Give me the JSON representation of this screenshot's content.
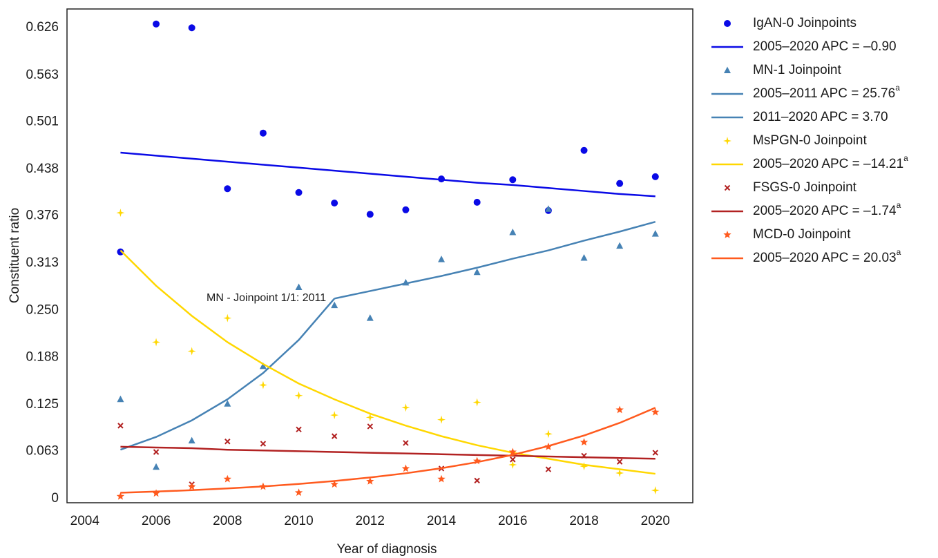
{
  "chart_data": {
    "type": "line",
    "x_label": "Year of diagnosis",
    "y_label": "Constituent ratio",
    "annotation": "MN - Joinpoint 1/1:  2011",
    "annotation_x": 2011,
    "x": [
      2005,
      2006,
      2007,
      2008,
      2009,
      2010,
      2011,
      2012,
      2013,
      2014,
      2015,
      2016,
      2017,
      2018,
      2019,
      2020
    ],
    "xlim": [
      2003.5,
      2021.05
    ],
    "xticks": [
      2004,
      2006,
      2008,
      2010,
      2012,
      2014,
      2016,
      2018,
      2020
    ],
    "ylim": [
      -0.0055,
      0.651
    ],
    "yticks": [
      0,
      0.063,
      0.125,
      0.188,
      {
        "value": 0.25,
        "label": "0.250"
      },
      0.313,
      0.376,
      0.438,
      0.501,
      0.563,
      0.626
    ],
    "grid": false,
    "legend": "outside-right",
    "series": [
      {
        "name": "IgAN-0 Joinpoints",
        "kind": "scatter",
        "marker": "circle",
        "color": "#0a0ae6",
        "values": [
          0.328,
          0.631,
          0.626,
          0.412,
          0.486,
          0.407,
          0.393,
          0.378,
          0.384,
          0.425,
          0.394,
          0.424,
          0.383,
          0.463,
          0.419,
          0.428
        ]
      },
      {
        "name": "2005–2020 APC = –0.90",
        "kind": "line",
        "color": "#0a0ae6",
        "values": [
          0.46,
          0.456,
          0.452,
          0.448,
          0.444,
          0.44,
          0.436,
          0.432,
          0.428,
          0.424,
          0.42,
          0.417,
          0.413,
          0.409,
          0.405,
          0.402
        ]
      },
      {
        "name": "MN-1 Joinpoint",
        "kind": "scatter",
        "marker": "triangle",
        "color": "#4682b4",
        "values": [
          0.132,
          0.042,
          0.077,
          0.126,
          0.176,
          0.281,
          0.257,
          0.24,
          0.287,
          0.318,
          0.301,
          0.354,
          0.385,
          0.32,
          0.336,
          0.352
        ]
      },
      {
        "name": "2005–2011 APC = 25.76",
        "name_sup": "a",
        "kind": "line",
        "color": "#4682b4",
        "values": [
          0.065,
          0.082,
          0.104,
          0.132,
          0.167,
          0.211,
          0.266,
          null,
          null,
          null,
          null,
          null,
          null,
          null,
          null,
          null
        ]
      },
      {
        "name": "2011–2020 APC = 3.70",
        "kind": "line",
        "color": "#4682b4",
        "values": [
          null,
          null,
          null,
          null,
          null,
          null,
          0.266,
          0.276,
          0.286,
          0.296,
          0.307,
          0.319,
          0.33,
          0.343,
          0.355,
          0.368
        ]
      },
      {
        "name": "MsPGN-0 Joinpoint",
        "kind": "scatter",
        "marker": "sparkle",
        "color": "#ffd700",
        "values": [
          0.38,
          0.208,
          0.196,
          0.24,
          0.151,
          0.137,
          0.111,
          0.108,
          0.121,
          0.105,
          0.128,
          0.045,
          0.086,
          0.043,
          0.034,
          0.011
        ]
      },
      {
        "name": "2005–2020 APC = –14.21",
        "name_sup": "a",
        "kind": "line",
        "color": "#ffd700",
        "values": [
          0.33,
          0.283,
          0.243,
          0.208,
          0.179,
          0.153,
          0.132,
          0.113,
          0.097,
          0.083,
          0.071,
          0.061,
          0.053,
          0.045,
          0.039,
          0.033
        ]
      },
      {
        "name": "FSGS-0 Joinpoint",
        "kind": "scatter",
        "marker": "x",
        "color": "#b22222",
        "values": [
          0.097,
          0.062,
          0.019,
          0.076,
          0.073,
          0.092,
          0.083,
          0.096,
          0.074,
          0.04,
          0.024,
          0.052,
          0.039,
          0.057,
          0.049,
          0.061
        ]
      },
      {
        "name": "2005–2020 APC = –1.74",
        "name_sup": "a",
        "kind": "line",
        "color": "#b22222",
        "values": [
          0.069,
          0.068,
          0.067,
          0.065,
          0.064,
          0.063,
          0.062,
          0.061,
          0.06,
          0.059,
          0.058,
          0.057,
          0.056,
          0.055,
          0.054,
          0.053
        ]
      },
      {
        "name": "MCD-0 Joinpoint",
        "kind": "scatter",
        "marker": "star",
        "color": "#ff5a1e",
        "values": [
          0.003,
          0.007,
          0.016,
          0.026,
          0.016,
          0.008,
          0.019,
          0.023,
          0.04,
          0.026,
          0.05,
          0.062,
          0.069,
          0.075,
          0.118,
          0.115
        ]
      },
      {
        "name": "2005–2020 APC = 20.03",
        "name_sup": "a",
        "kind": "line",
        "color": "#ff5a1e",
        "values": [
          0.0078,
          0.0094,
          0.0112,
          0.0135,
          0.0162,
          0.0195,
          0.0234,
          0.0281,
          0.0337,
          0.0404,
          0.0485,
          0.0582,
          0.0699,
          0.0839,
          0.1007,
          0.1208
        ]
      }
    ]
  }
}
